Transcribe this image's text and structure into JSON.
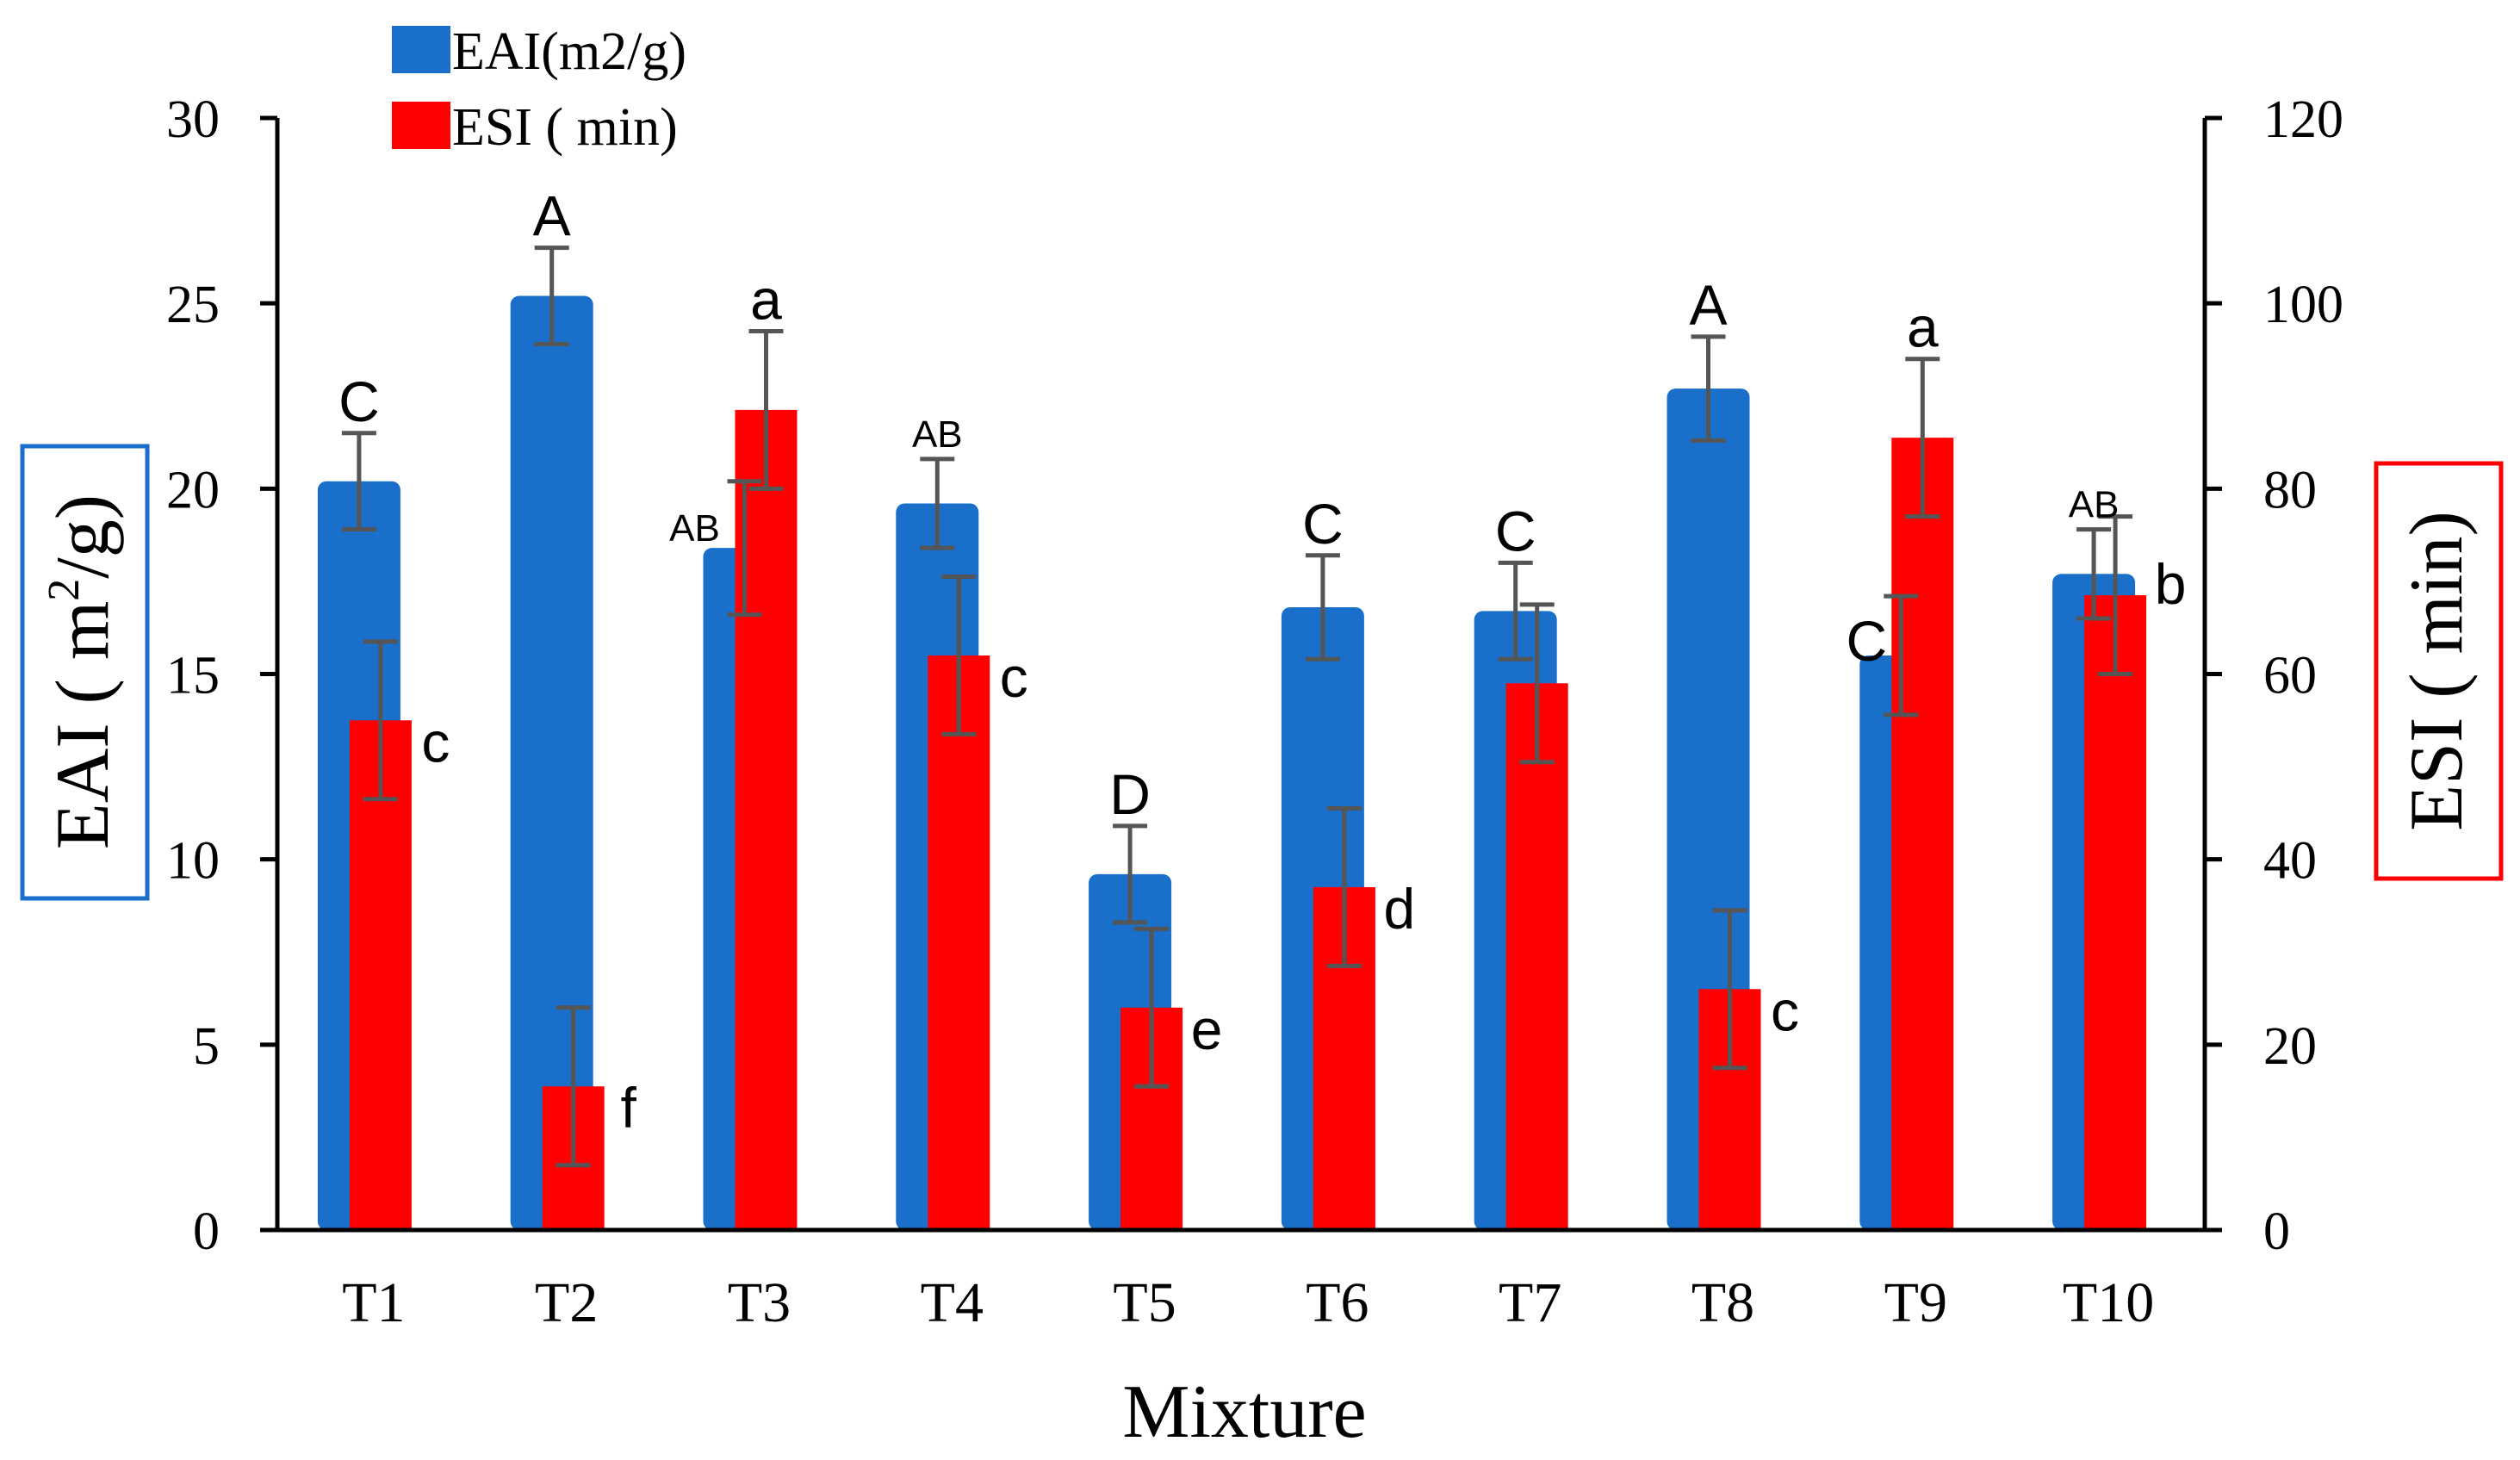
{
  "chart_data": {
    "type": "bar",
    "categories": [
      "T1",
      "T2",
      "T3",
      "T4",
      "T5",
      "T6",
      "T7",
      "T8",
      "T9",
      "T10"
    ],
    "xlabel": "Mixture",
    "series": [
      {
        "name": "EAI(m2/g)",
        "axis": "left",
        "color": "#1a6fcb",
        "values": [
          20.2,
          25.2,
          18.4,
          19.6,
          9.6,
          16.8,
          16.7,
          22.7,
          15.5,
          17.7
        ],
        "errors": [
          1.3,
          1.3,
          1.8,
          1.2,
          1.3,
          1.4,
          1.3,
          1.4,
          1.6,
          1.2
        ],
        "letters": [
          "C",
          "A",
          "AB",
          "AB",
          "D",
          "C",
          "C",
          "A",
          "C",
          "AB"
        ]
      },
      {
        "name": "ESI ( min)",
        "axis": "right",
        "color": "#ff0000",
        "values": [
          55,
          15.5,
          88.5,
          62,
          24,
          37,
          59,
          26,
          85.5,
          68.5
        ],
        "errors": [
          8.5,
          8.5,
          8.5,
          8.5,
          8.5,
          8.5,
          8.5,
          8.5,
          8.5,
          8.5
        ],
        "letters": [
          "c",
          "f",
          "a",
          "c",
          "e",
          "d",
          "",
          "c",
          "a",
          "b"
        ]
      }
    ],
    "y_left": {
      "label": "EAI",
      "unit_base": "m",
      "unit_exp": "2",
      "unit_tail": "/g)",
      "min": 0,
      "max": 30,
      "ticks": [
        "0",
        "5",
        "10",
        "15",
        "20",
        "25",
        "30"
      ],
      "box_color": "#1a6fcb"
    },
    "y_right": {
      "label": "ESI ( min)",
      "min": 0,
      "max": 120,
      "ticks": [
        "0",
        "20",
        "40",
        "60",
        "80",
        "100",
        "120"
      ],
      "box_color": "#ff0000"
    },
    "legend": {
      "position": "top-left"
    },
    "grid": false
  }
}
